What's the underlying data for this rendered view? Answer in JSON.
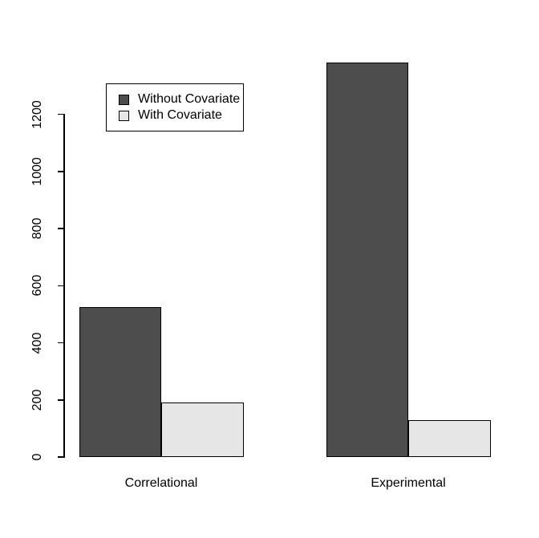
{
  "chart_data": {
    "type": "bar",
    "title": "",
    "xlabel": "",
    "ylabel": "",
    "categories": [
      "Correlational",
      "Experimental"
    ],
    "series": [
      {
        "name": "Without Covariate",
        "color": "#4D4D4D",
        "values": [
          525,
          1380
        ]
      },
      {
        "name": "With Covariate",
        "color": "#E6E6E6",
        "values": [
          190,
          130
        ]
      }
    ],
    "ylim": [
      0,
      1200
    ],
    "yticks": [
      0,
      200,
      400,
      600,
      800,
      1000,
      1200
    ],
    "grid": false,
    "legend_position": "top-left-inside",
    "bar_border_color": "#000000",
    "axis_color": "#000000",
    "background_color": "#FFFFFF"
  }
}
